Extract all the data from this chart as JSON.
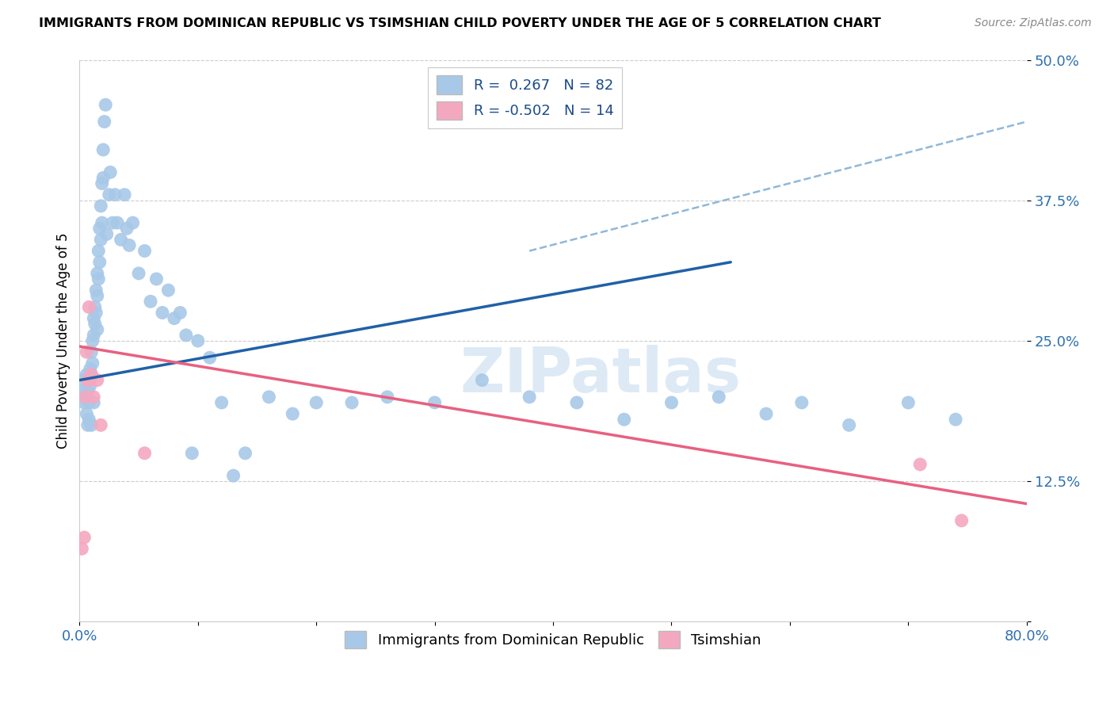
{
  "title": "IMMIGRANTS FROM DOMINICAN REPUBLIC VS TSIMSHIAN CHILD POVERTY UNDER THE AGE OF 5 CORRELATION CHART",
  "source": "Source: ZipAtlas.com",
  "ylabel": "Child Poverty Under the Age of 5",
  "xlim": [
    0.0,
    0.8
  ],
  "ylim": [
    0.0,
    0.5
  ],
  "xticks": [
    0.0,
    0.1,
    0.2,
    0.3,
    0.4,
    0.5,
    0.6,
    0.7,
    0.8
  ],
  "xticklabels": [
    "0.0%",
    "",
    "",
    "",
    "",
    "",
    "",
    "",
    "80.0%"
  ],
  "yticks": [
    0.0,
    0.125,
    0.25,
    0.375,
    0.5
  ],
  "yticklabels": [
    "",
    "12.5%",
    "25.0%",
    "37.5%",
    "50.0%"
  ],
  "blue_color": "#a8c8e8",
  "pink_color": "#f4a8c0",
  "blue_line_color": "#2060a8",
  "pink_line_color": "#e86080",
  "dashed_line_color": "#90b8d8",
  "legend_R1": "0.267",
  "legend_N1": "82",
  "legend_R2": "-0.502",
  "legend_N2": "14",
  "legend_label1": "Immigrants from Dominican Republic",
  "legend_label2": "Tsimshian",
  "watermark": "ZIPatlas",
  "blue_scatter_x": [
    0.002,
    0.003,
    0.004,
    0.005,
    0.006,
    0.006,
    0.007,
    0.007,
    0.008,
    0.008,
    0.009,
    0.009,
    0.01,
    0.01,
    0.01,
    0.011,
    0.011,
    0.012,
    0.012,
    0.012,
    0.013,
    0.013,
    0.014,
    0.014,
    0.015,
    0.015,
    0.015,
    0.016,
    0.016,
    0.017,
    0.017,
    0.018,
    0.018,
    0.019,
    0.019,
    0.02,
    0.02,
    0.021,
    0.022,
    0.023,
    0.025,
    0.026,
    0.028,
    0.03,
    0.032,
    0.035,
    0.038,
    0.04,
    0.042,
    0.045,
    0.05,
    0.055,
    0.06,
    0.065,
    0.07,
    0.075,
    0.08,
    0.085,
    0.09,
    0.095,
    0.1,
    0.11,
    0.12,
    0.13,
    0.14,
    0.16,
    0.18,
    0.2,
    0.23,
    0.26,
    0.3,
    0.34,
    0.38,
    0.42,
    0.46,
    0.5,
    0.54,
    0.58,
    0.61,
    0.65,
    0.7,
    0.74
  ],
  "blue_scatter_y": [
    0.205,
    0.215,
    0.195,
    0.2,
    0.22,
    0.185,
    0.205,
    0.175,
    0.195,
    0.18,
    0.225,
    0.21,
    0.24,
    0.22,
    0.175,
    0.25,
    0.23,
    0.27,
    0.255,
    0.195,
    0.28,
    0.265,
    0.295,
    0.275,
    0.31,
    0.29,
    0.26,
    0.33,
    0.305,
    0.35,
    0.32,
    0.37,
    0.34,
    0.39,
    0.355,
    0.42,
    0.395,
    0.445,
    0.46,
    0.345,
    0.38,
    0.4,
    0.355,
    0.38,
    0.355,
    0.34,
    0.38,
    0.35,
    0.335,
    0.355,
    0.31,
    0.33,
    0.285,
    0.305,
    0.275,
    0.295,
    0.27,
    0.275,
    0.255,
    0.15,
    0.25,
    0.235,
    0.195,
    0.13,
    0.15,
    0.2,
    0.185,
    0.195,
    0.195,
    0.2,
    0.195,
    0.215,
    0.2,
    0.195,
    0.18,
    0.195,
    0.2,
    0.185,
    0.195,
    0.175,
    0.195,
    0.18
  ],
  "pink_scatter_x": [
    0.002,
    0.004,
    0.005,
    0.006,
    0.007,
    0.008,
    0.009,
    0.01,
    0.012,
    0.015,
    0.018,
    0.055,
    0.71,
    0.745
  ],
  "pink_scatter_y": [
    0.065,
    0.075,
    0.2,
    0.24,
    0.215,
    0.28,
    0.215,
    0.22,
    0.2,
    0.215,
    0.175,
    0.15,
    0.14,
    0.09
  ],
  "blue_trend_x": [
    0.0,
    0.55
  ],
  "blue_trend_y": [
    0.215,
    0.32
  ],
  "pink_trend_x": [
    0.0,
    0.8
  ],
  "pink_trend_y": [
    0.245,
    0.105
  ],
  "dashed_trend_x": [
    0.38,
    0.8
  ],
  "dashed_trend_y": [
    0.33,
    0.445
  ]
}
